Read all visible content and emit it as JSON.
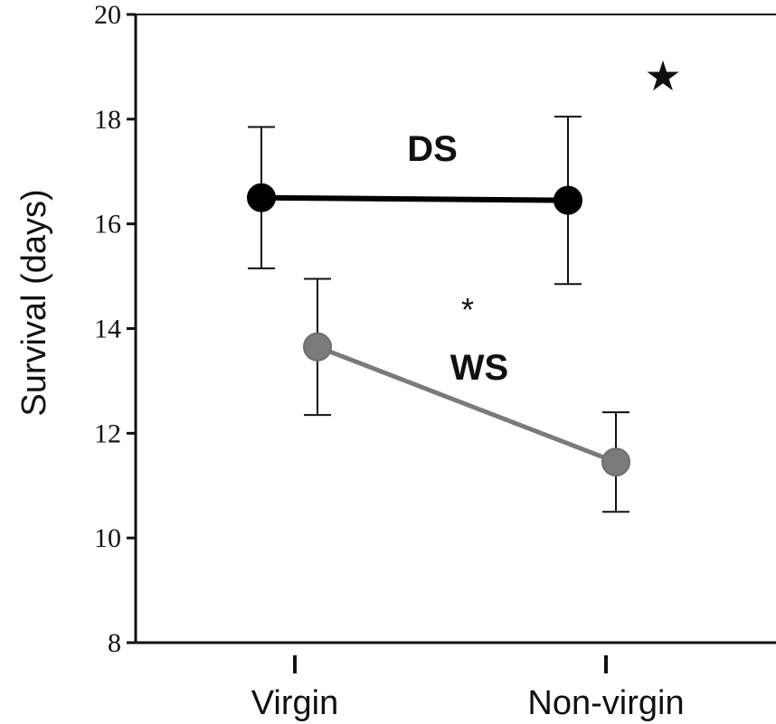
{
  "chart_data": {
    "type": "line",
    "ylabel": "Survival (days)",
    "ylim": [
      8,
      20
    ],
    "yticks": [
      "8",
      "10",
      "12",
      "14",
      "16",
      "18",
      "20"
    ],
    "categories": [
      "Virgin",
      "Non-virgin"
    ],
    "series": [
      {
        "name": "DS",
        "values": [
          16.5,
          16.45
        ],
        "errors": [
          1.35,
          1.6
        ],
        "color": "#000000"
      },
      {
        "name": "WS",
        "values": [
          13.65,
          11.45
        ],
        "errors": [
          1.3,
          0.95
        ],
        "color": "#7a7a7a"
      }
    ],
    "annotations": {
      "asterisk": "*",
      "star": "★"
    }
  }
}
